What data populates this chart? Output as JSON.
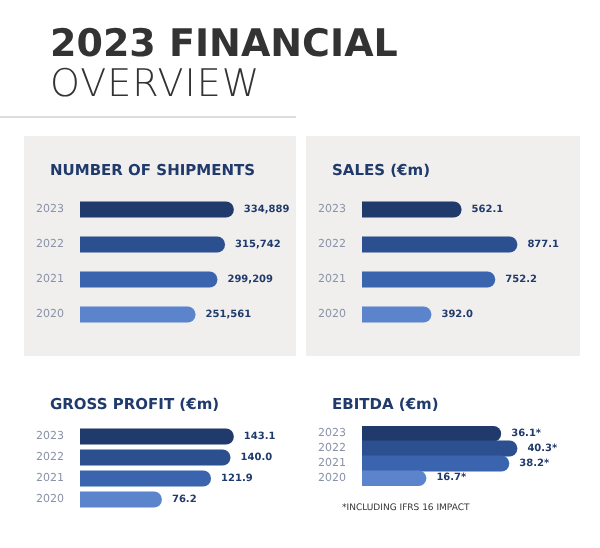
{
  "chart_data": [
    {
      "type": "bar",
      "orientation": "horizontal",
      "title": "NUMBER OF SHIPMENTS",
      "annotations": [
        "2023 FINANCIAL",
        "OVERVIEW"
      ],
      "categories": [
        "2023",
        "2022",
        "2021",
        "2020"
      ],
      "values": [
        334889,
        315742,
        299209,
        251561
      ],
      "colors": [
        "#1f3a6b",
        "#2b4f8f",
        "#3a64ad",
        "#5b84cc"
      ],
      "value_labels": [
        "334,889",
        "315,742",
        "299,209",
        "251,561"
      ]
    },
    {
      "type": "bar",
      "orientation": "horizontal",
      "title": "SALES (€m)",
      "categories": [
        "2023",
        "2022",
        "2021",
        "2020"
      ],
      "values": [
        562.1,
        877.1,
        752.2,
        392.0
      ],
      "colors": [
        "#1f3a6b",
        "#2b4f8f",
        "#3a64ad",
        "#5b84cc"
      ],
      "value_labels": [
        "562.1",
        "877.1",
        "752.2",
        "392.0"
      ]
    },
    {
      "type": "bar",
      "orientation": "horizontal",
      "title": "GROSS PROFIT (€m)",
      "categories": [
        "2023",
        "2022",
        "2021",
        "2020"
      ],
      "values": [
        143.1,
        140.0,
        121.9,
        76.2
      ],
      "colors": [
        "#1f3a6b",
        "#2b4f8f",
        "#3a64ad",
        "#5b84cc"
      ],
      "value_labels": [
        "143.1",
        "140.0",
        "121.9",
        "76.2"
      ]
    },
    {
      "type": "bar",
      "orientation": "horizontal",
      "title": "EBITDA (€m)",
      "annotations": [
        "*INCLUDING IFRS 16 IMPACT"
      ],
      "categories": [
        "2023",
        "2022",
        "2021",
        "2020"
      ],
      "values": [
        36.1,
        40.3,
        38.2,
        16.7
      ],
      "colors": [
        "#1f3a6b",
        "#2b4f8f",
        "#3a64ad",
        "#5b84cc"
      ],
      "value_labels": [
        "36.1*",
        "40.3*",
        "38.2*",
        "16.7*"
      ]
    }
  ]
}
